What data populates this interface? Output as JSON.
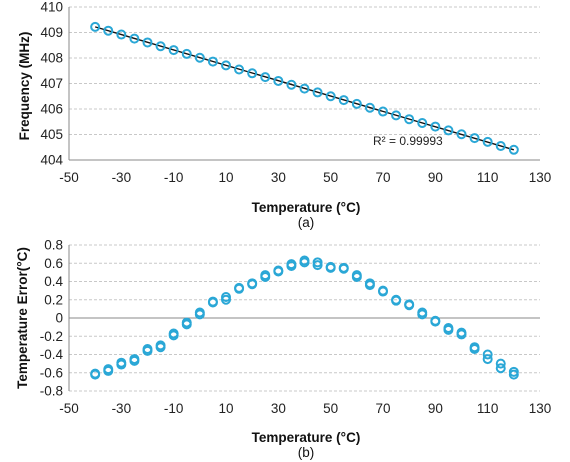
{
  "colors": {
    "marker": "#2aa7d6",
    "fit_line": "#111111",
    "grid": "#c8c8c8",
    "axis": "#8a8a8a"
  },
  "chart_data": [
    {
      "type": "scatter",
      "panel_label": "(a)",
      "xlabel": "Temperature (°C)",
      "ylabel": "Frequency (MHz)",
      "xlim": [
        -50,
        130
      ],
      "ylim": [
        404,
        410
      ],
      "x_ticks": [
        "-50",
        "-30",
        "-10",
        "10",
        "30",
        "50",
        "70",
        "90",
        "110",
        "130"
      ],
      "y_ticks": [
        "404",
        "405",
        "406",
        "407",
        "408",
        "409",
        "410"
      ],
      "grid": "horizontal dashed",
      "marker": "open circle",
      "fit": {
        "type": "linear",
        "label": "R² = 0.99993",
        "x0": -40,
        "y0": 409.22,
        "x1": 120,
        "y1": 404.4
      },
      "series": [
        {
          "x": [
            -40,
            -35,
            -30,
            -25,
            -20,
            -15,
            -10,
            -5,
            0,
            5,
            10,
            15,
            20,
            25,
            30,
            35,
            40,
            45,
            50,
            55,
            60,
            65,
            70,
            75,
            80,
            85,
            90,
            95,
            100,
            105,
            110,
            115,
            120
          ],
          "y": [
            409.22,
            409.07,
            408.92,
            408.76,
            408.61,
            408.46,
            408.31,
            408.16,
            408.01,
            407.86,
            407.71,
            407.55,
            407.4,
            407.25,
            407.1,
            406.95,
            406.8,
            406.65,
            406.5,
            406.35,
            406.2,
            406.05,
            405.9,
            405.75,
            405.6,
            405.45,
            405.31,
            405.16,
            405.01,
            404.86,
            404.71,
            404.55,
            404.4
          ]
        }
      ]
    },
    {
      "type": "scatter",
      "panel_label": "(b)",
      "xlabel": "Temperature (°C)",
      "ylabel": "Temperature Error(°C)",
      "xlim": [
        -50,
        130
      ],
      "ylim": [
        -0.8,
        0.8
      ],
      "x_ticks": [
        "-50",
        "-30",
        "-10",
        "10",
        "30",
        "50",
        "70",
        "90",
        "110",
        "130"
      ],
      "y_ticks": [
        "0.8",
        "0.6",
        "0.4",
        "0.2",
        "0",
        "-0.2",
        "-0.4",
        "-0.6",
        "-0.8"
      ],
      "grid": "horizontal dashed",
      "marker": "open circle",
      "series": [
        {
          "x": [
            -40,
            -40,
            -35,
            -35,
            -30,
            -30,
            -25,
            -25,
            -20,
            -20,
            -15,
            -15,
            -10,
            -10,
            -5,
            -5,
            0,
            0,
            5,
            5,
            10,
            10,
            15,
            15,
            20,
            20,
            25,
            25,
            30,
            30,
            35,
            35,
            40,
            40,
            45,
            45,
            50,
            50,
            55,
            55,
            60,
            60,
            65,
            65,
            70,
            70,
            75,
            75,
            80,
            80,
            85,
            85,
            90,
            90,
            95,
            95,
            100,
            100,
            105,
            105,
            110,
            110,
            115,
            115,
            120,
            120
          ],
          "y": [
            -0.62,
            -0.61,
            -0.58,
            -0.56,
            -0.51,
            -0.49,
            -0.47,
            -0.45,
            -0.36,
            -0.34,
            -0.32,
            -0.3,
            -0.19,
            -0.17,
            -0.07,
            -0.05,
            0.04,
            0.06,
            0.17,
            0.18,
            0.2,
            0.23,
            0.32,
            0.33,
            0.37,
            0.38,
            0.45,
            0.47,
            0.51,
            0.52,
            0.57,
            0.59,
            0.61,
            0.63,
            0.58,
            0.61,
            0.55,
            0.56,
            0.54,
            0.55,
            0.45,
            0.47,
            0.36,
            0.38,
            0.29,
            0.3,
            0.19,
            0.2,
            0.14,
            0.15,
            0.04,
            0.06,
            -0.04,
            -0.03,
            -0.13,
            -0.11,
            -0.18,
            -0.16,
            -0.34,
            -0.32,
            -0.45,
            -0.4,
            -0.55,
            -0.5,
            -0.62,
            -0.59
          ]
        }
      ]
    }
  ]
}
